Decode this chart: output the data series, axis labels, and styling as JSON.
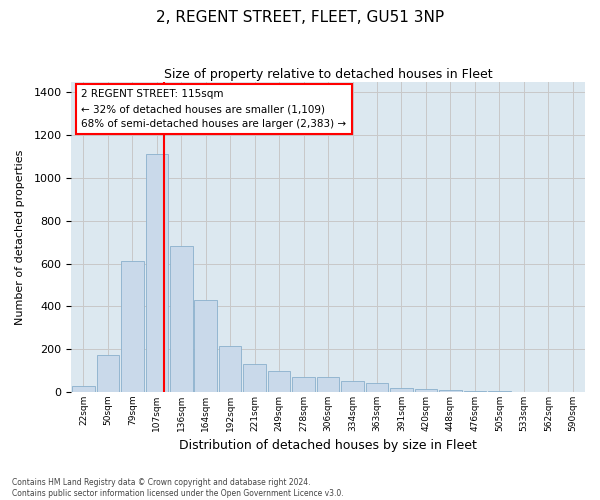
{
  "title": "2, REGENT STREET, FLEET, GU51 3NP",
  "subtitle": "Size of property relative to detached houses in Fleet",
  "xlabel": "Distribution of detached houses by size in Fleet",
  "ylabel": "Number of detached properties",
  "categories": [
    "22sqm",
    "50sqm",
    "79sqm",
    "107sqm",
    "136sqm",
    "164sqm",
    "192sqm",
    "221sqm",
    "249sqm",
    "278sqm",
    "306sqm",
    "334sqm",
    "363sqm",
    "391sqm",
    "420sqm",
    "448sqm",
    "476sqm",
    "505sqm",
    "533sqm",
    "562sqm",
    "590sqm"
  ],
  "values": [
    30,
    175,
    610,
    1110,
    680,
    430,
    215,
    130,
    100,
    70,
    70,
    50,
    40,
    20,
    15,
    10,
    5,
    3,
    2,
    1,
    1
  ],
  "bar_color": "#c9d9ea",
  "bar_edgecolor": "#8ab0cc",
  "ref_line_label": "2 REGENT STREET: 115sqm",
  "annotation_line1": "← 32% of detached houses are smaller (1,109)",
  "annotation_line2": "68% of semi-detached houses are larger (2,383) →",
  "annotation_box_color": "white",
  "annotation_box_edgecolor": "red",
  "ref_line_color": "red",
  "ylim": [
    0,
    1450
  ],
  "yticks": [
    0,
    200,
    400,
    600,
    800,
    1000,
    1200,
    1400
  ],
  "grid_color": "#c8c8c8",
  "background_color": "#dce8f0",
  "footer_line1": "Contains HM Land Registry data © Crown copyright and database right 2024.",
  "footer_line2": "Contains public sector information licensed under the Open Government Licence v3.0."
}
